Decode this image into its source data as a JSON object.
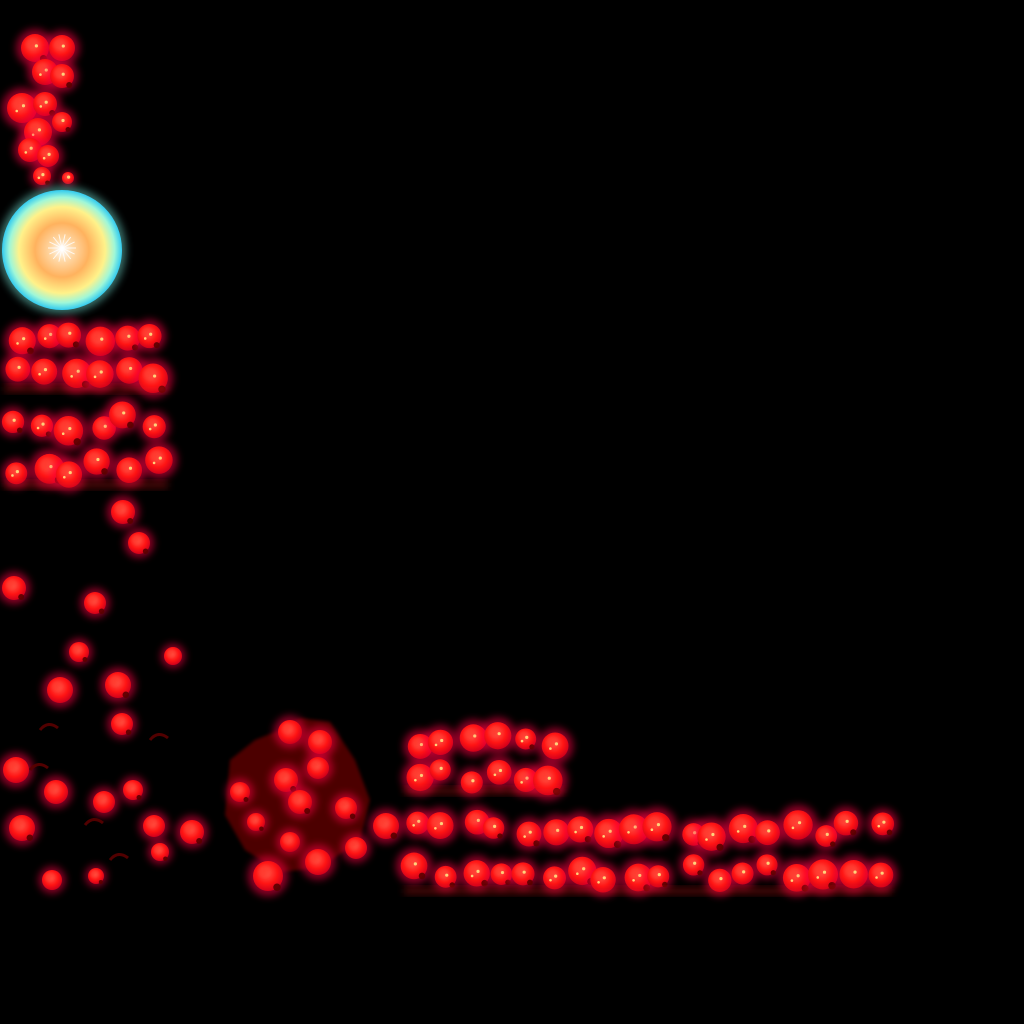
{
  "sheet": {
    "background_color": "#000000",
    "palette": {
      "glow_outer": "#ff0044",
      "glow_mid": "#ff1a1a",
      "core": "#ff3b2e",
      "spark": "#ffd27a",
      "dark_ember": "#5a0000",
      "orb_edge": "#7ff5e6",
      "orb_mid": "#ffb25e",
      "orb_core": "#ffffff"
    },
    "sprites": [
      {
        "name": "ember-column-sprite",
        "icon": "ember-column-icon"
      },
      {
        "name": "fire-orb-sprite",
        "icon": "glowing-orb-icon"
      },
      {
        "name": "ember-strip-sprite-1",
        "icon": "ember-strip-icon"
      },
      {
        "name": "ember-strip-sprite-2",
        "icon": "ember-strip-icon"
      },
      {
        "name": "ember-particle-drop-sprite",
        "icon": "particle-icon"
      },
      {
        "name": "ember-scatter-sprite",
        "icon": "particle-scatter-icon"
      },
      {
        "name": "ember-burst-sprite",
        "icon": "explosion-burst-icon"
      },
      {
        "name": "ember-strip-sprite-3",
        "icon": "ember-strip-icon"
      },
      {
        "name": "ember-strip-sprite-4",
        "icon": "ember-strip-icon"
      }
    ]
  }
}
